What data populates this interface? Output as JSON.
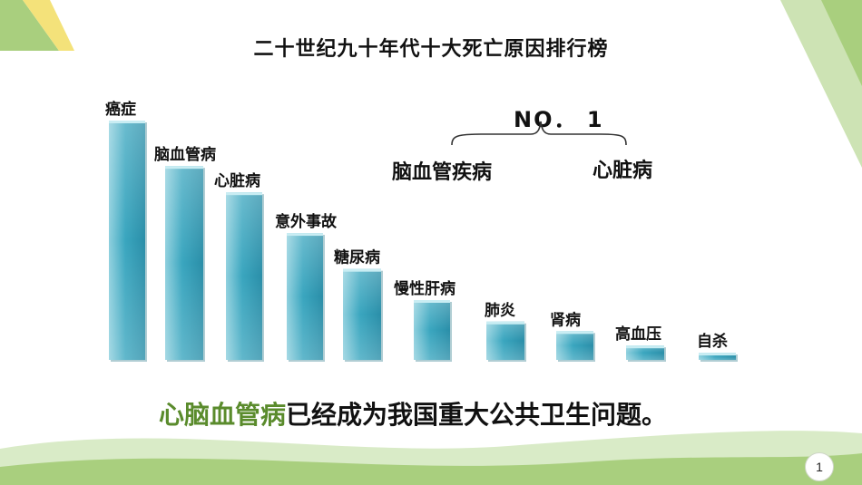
{
  "slide": {
    "title": "二十世纪九十年代十大死亡原因排行榜",
    "no1_label": "NO． 1",
    "no1_items": [
      "脑血管疾病",
      "心脏病"
    ],
    "conclusion_highlight": "心脑血管病",
    "conclusion_rest": "已经成为我国重大公共卫生问题。",
    "page_number": "1"
  },
  "colors": {
    "bar_light": "#9ad4e0",
    "bar_mid": "#3aa6bf",
    "bar_dark": "#2a8ea8",
    "highlight_green": "#5a8b2c",
    "deco_green": "#a9cf7e",
    "deco_yellow": "#f4e27a"
  },
  "chart_data": {
    "type": "bar",
    "title": "二十世纪九十年代十大死亡原因排行榜",
    "categories": [
      "癌症",
      "脑血管病",
      "心脏病",
      "意外事故",
      "糖尿病",
      "慢性肝病",
      "肺炎",
      "肾病",
      "高血压",
      "自杀"
    ],
    "values": [
      100,
      81,
      70,
      53,
      38,
      25,
      16,
      12,
      6,
      3
    ],
    "ylim": [
      0,
      100
    ],
    "axis_labels_shown": false,
    "grid": false,
    "legend": "none"
  }
}
